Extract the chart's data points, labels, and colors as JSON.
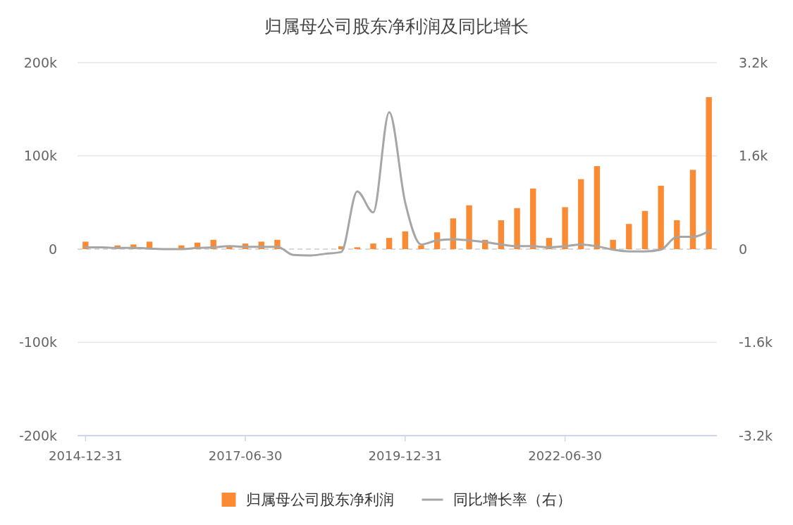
{
  "chart_data": {
    "type": "bar",
    "title": "归属母公司股东净利润及同比增长",
    "categories": [
      "2014-12-31",
      null,
      null,
      null,
      null,
      null,
      null,
      null,
      null,
      null,
      "2017-06-30",
      null,
      null,
      null,
      null,
      null,
      null,
      null,
      null,
      null,
      "2019-12-31",
      null,
      null,
      null,
      null,
      null,
      null,
      null,
      null,
      null,
      "2022-06-30",
      null,
      null,
      null,
      null,
      null,
      null,
      null,
      null,
      null
    ],
    "series": [
      {
        "name": "归属母公司股东净利润",
        "color": "#fb8a35",
        "values": [
          8000,
          null,
          4000,
          5000,
          8000,
          null,
          4000,
          7000,
          10000,
          3000,
          6000,
          8000,
          10000,
          null,
          null,
          null,
          3000,
          2000,
          6000,
          12000,
          19000,
          4000,
          18000,
          33000,
          47000,
          10000,
          31000,
          44000,
          65000,
          12000,
          45000,
          75000,
          89000,
          10000,
          27000,
          41000,
          68000,
          31000,
          85000,
          163000
        ]
      },
      {
        "name": "同比增长率（右）",
        "type": "line",
        "axis": "y2",
        "color": "#a6a6a6",
        "values": [
          30,
          30,
          20,
          20,
          10,
          0,
          0,
          20,
          30,
          50,
          40,
          40,
          40,
          -100,
          -110,
          -80,
          -50,
          990,
          630,
          2350,
          800,
          80,
          150,
          170,
          150,
          120,
          80,
          50,
          50,
          30,
          50,
          80,
          50,
          -10,
          -40,
          -40,
          -10,
          210,
          210,
          310
        ]
      }
    ],
    "ylim": [
      -200000,
      200000
    ],
    "yticks": [
      {
        "value": -200000,
        "label": "-200k"
      },
      {
        "value": -100000,
        "label": "-100k"
      },
      0,
      {
        "value": 100000,
        "label": "100k"
      },
      {
        "value": 200000,
        "label": "200k"
      }
    ],
    "y2lim": [
      -3200,
      3200
    ],
    "y2ticks": [
      {
        "value": -3200,
        "label": "-3.2k"
      },
      {
        "value": -1600,
        "label": "-1.6k"
      },
      0,
      {
        "value": 1600,
        "label": "1.6k"
      },
      {
        "value": 3200,
        "label": "3.2k"
      }
    ],
    "grid": "y",
    "legend": "bottom",
    "ref_lines": [
      {
        "axis": "y",
        "value": 0,
        "color": "#cccccc",
        "line_style": "dashed"
      }
    ]
  }
}
